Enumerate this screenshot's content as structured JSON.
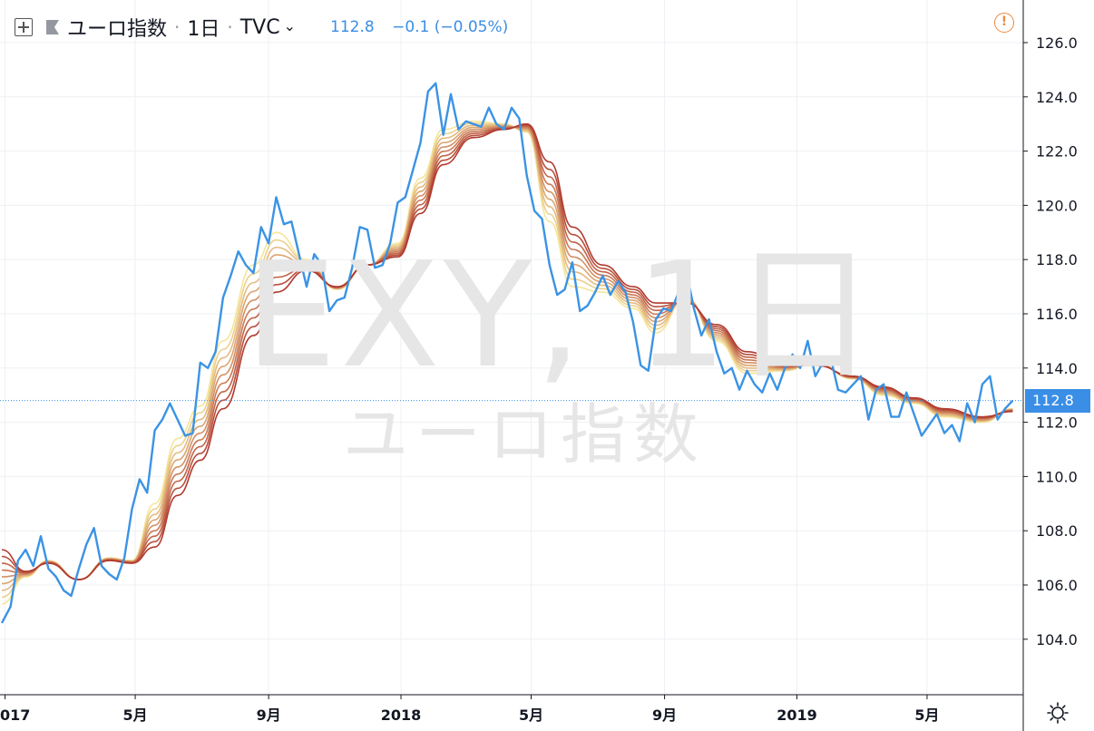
{
  "header": {
    "symbol_name": "ユーロ指数",
    "interval": "1日",
    "exchange": "TVC",
    "last_value": "112.8",
    "change": "−0.1 (−0.05%)"
  },
  "watermark": {
    "symbol": "EXY, 1日",
    "name": "ユーロ指数"
  },
  "price_tag": "112.8",
  "icons": {
    "add": "plus-square-icon",
    "flag": "flag-icon",
    "dropdown": "chevron-down-icon",
    "alert": "alert-icon",
    "settings": "gear-icon"
  },
  "colors": {
    "price_line": "#3b93e4",
    "ribbon_fast": "#f5e59a",
    "ribbon_slow": "#b03a2e",
    "accent": "#3a8ee6",
    "alert": "#f0883e"
  },
  "chart_data": {
    "type": "line",
    "title": "",
    "xlabel": "",
    "ylabel": "",
    "ylim": [
      102.5,
      127.0
    ],
    "y_ticks": [
      104.0,
      106.0,
      108.0,
      110.0,
      112.0,
      114.0,
      116.0,
      118.0,
      120.0,
      122.0,
      124.0,
      126.0
    ],
    "x_tick_labels": [
      {
        "label": "017",
        "date": "2017-01"
      },
      {
        "label": "5月",
        "date": "2017-05"
      },
      {
        "label": "9月",
        "date": "2017-09"
      },
      {
        "label": "2018",
        "date": "2018-01"
      },
      {
        "label": "5月",
        "date": "2018-05"
      },
      {
        "label": "9月",
        "date": "2018-09"
      },
      {
        "label": "2019",
        "date": "2019-01"
      },
      {
        "label": "5月",
        "date": "2019-05"
      }
    ],
    "x_range": [
      "2016-12-29",
      "2019-07-22"
    ],
    "grid": true,
    "last_value_line": 112.8,
    "series": [
      {
        "kind": "price",
        "points": [
          [
            "2016-12-29",
            104.6
          ],
          [
            "2017-01-06",
            105.2
          ],
          [
            "2017-01-13",
            106.9
          ],
          [
            "2017-01-20",
            107.3
          ],
          [
            "2017-01-27",
            106.7
          ],
          [
            "2017-02-03",
            107.8
          ],
          [
            "2017-02-10",
            106.6
          ],
          [
            "2017-02-17",
            106.3
          ],
          [
            "2017-02-24",
            105.8
          ],
          [
            "2017-03-03",
            105.6
          ],
          [
            "2017-03-10",
            106.6
          ],
          [
            "2017-03-17",
            107.5
          ],
          [
            "2017-03-24",
            108.1
          ],
          [
            "2017-03-31",
            106.7
          ],
          [
            "2017-04-07",
            106.4
          ],
          [
            "2017-04-14",
            106.2
          ],
          [
            "2017-04-21",
            107.0
          ],
          [
            "2017-04-28",
            108.8
          ],
          [
            "2017-05-05",
            109.9
          ],
          [
            "2017-05-12",
            109.4
          ],
          [
            "2017-05-19",
            111.7
          ],
          [
            "2017-05-26",
            112.1
          ],
          [
            "2017-06-02",
            112.7
          ],
          [
            "2017-06-09",
            112.1
          ],
          [
            "2017-06-16",
            111.5
          ],
          [
            "2017-06-23",
            111.6
          ],
          [
            "2017-06-30",
            114.2
          ],
          [
            "2017-07-07",
            114.0
          ],
          [
            "2017-07-14",
            114.6
          ],
          [
            "2017-07-21",
            116.6
          ],
          [
            "2017-07-28",
            117.4
          ],
          [
            "2017-08-04",
            118.3
          ],
          [
            "2017-08-11",
            117.8
          ],
          [
            "2017-08-18",
            117.5
          ],
          [
            "2017-08-25",
            119.2
          ],
          [
            "2017-09-01",
            118.6
          ],
          [
            "2017-09-08",
            120.3
          ],
          [
            "2017-09-15",
            119.3
          ],
          [
            "2017-09-22",
            119.4
          ],
          [
            "2017-09-29",
            118.2
          ],
          [
            "2017-10-06",
            117.0
          ],
          [
            "2017-10-13",
            118.2
          ],
          [
            "2017-10-20",
            117.8
          ],
          [
            "2017-10-27",
            116.1
          ],
          [
            "2017-11-03",
            116.5
          ],
          [
            "2017-11-10",
            116.6
          ],
          [
            "2017-11-17",
            117.7
          ],
          [
            "2017-11-24",
            119.2
          ],
          [
            "2017-12-01",
            119.1
          ],
          [
            "2017-12-08",
            117.7
          ],
          [
            "2017-12-15",
            117.8
          ],
          [
            "2017-12-22",
            118.6
          ],
          [
            "2017-12-29",
            120.1
          ],
          [
            "2018-01-05",
            120.3
          ],
          [
            "2018-01-12",
            121.3
          ],
          [
            "2018-01-19",
            122.3
          ],
          [
            "2018-01-26",
            124.2
          ],
          [
            "2018-02-02",
            124.5
          ],
          [
            "2018-02-09",
            122.6
          ],
          [
            "2018-02-16",
            124.1
          ],
          [
            "2018-02-23",
            122.8
          ],
          [
            "2018-03-02",
            123.1
          ],
          [
            "2018-03-09",
            123.0
          ],
          [
            "2018-03-16",
            122.9
          ],
          [
            "2018-03-23",
            123.6
          ],
          [
            "2018-03-30",
            123.0
          ],
          [
            "2018-04-06",
            122.8
          ],
          [
            "2018-04-13",
            123.6
          ],
          [
            "2018-04-20",
            123.2
          ],
          [
            "2018-04-27",
            121.1
          ],
          [
            "2018-05-04",
            119.8
          ],
          [
            "2018-05-11",
            119.5
          ],
          [
            "2018-05-18",
            117.8
          ],
          [
            "2018-05-25",
            116.7
          ],
          [
            "2018-06-01",
            116.9
          ],
          [
            "2018-06-08",
            117.9
          ],
          [
            "2018-06-15",
            116.1
          ],
          [
            "2018-06-22",
            116.3
          ],
          [
            "2018-06-29",
            116.8
          ],
          [
            "2018-07-06",
            117.4
          ],
          [
            "2018-07-13",
            116.7
          ],
          [
            "2018-07-20",
            117.2
          ],
          [
            "2018-07-27",
            116.8
          ],
          [
            "2018-08-03",
            115.7
          ],
          [
            "2018-08-10",
            114.1
          ],
          [
            "2018-08-17",
            113.9
          ],
          [
            "2018-08-24",
            115.8
          ],
          [
            "2018-08-31",
            116.2
          ],
          [
            "2018-09-07",
            116.1
          ],
          [
            "2018-09-14",
            116.8
          ],
          [
            "2018-09-21",
            117.6
          ],
          [
            "2018-09-28",
            116.2
          ],
          [
            "2018-10-05",
            115.2
          ],
          [
            "2018-10-12",
            115.8
          ],
          [
            "2018-10-19",
            114.6
          ],
          [
            "2018-10-26",
            113.8
          ],
          [
            "2018-11-02",
            114.0
          ],
          [
            "2018-11-09",
            113.2
          ],
          [
            "2018-11-16",
            113.9
          ],
          [
            "2018-11-23",
            113.4
          ],
          [
            "2018-11-30",
            113.1
          ],
          [
            "2018-12-07",
            113.8
          ],
          [
            "2018-12-14",
            113.2
          ],
          [
            "2018-12-21",
            114.0
          ],
          [
            "2018-12-28",
            114.5
          ],
          [
            "2019-01-04",
            114.0
          ],
          [
            "2019-01-11",
            115.0
          ],
          [
            "2019-01-18",
            113.7
          ],
          [
            "2019-01-25",
            114.2
          ],
          [
            "2019-02-01",
            114.4
          ],
          [
            "2019-02-08",
            113.2
          ],
          [
            "2019-02-15",
            113.1
          ],
          [
            "2019-02-22",
            113.4
          ],
          [
            "2019-03-01",
            113.7
          ],
          [
            "2019-03-08",
            112.1
          ],
          [
            "2019-03-15",
            113.2
          ],
          [
            "2019-03-22",
            113.4
          ],
          [
            "2019-03-29",
            112.2
          ],
          [
            "2019-04-05",
            112.2
          ],
          [
            "2019-04-12",
            113.1
          ],
          [
            "2019-04-19",
            112.3
          ],
          [
            "2019-04-26",
            111.5
          ],
          [
            "2019-05-03",
            111.9
          ],
          [
            "2019-05-10",
            112.3
          ],
          [
            "2019-05-17",
            111.6
          ],
          [
            "2019-05-24",
            111.9
          ],
          [
            "2019-05-31",
            111.3
          ],
          [
            "2019-06-07",
            112.7
          ],
          [
            "2019-06-14",
            112.0
          ],
          [
            "2019-06-21",
            113.4
          ],
          [
            "2019-06-28",
            113.7
          ],
          [
            "2019-07-05",
            112.1
          ],
          [
            "2019-07-12",
            112.5
          ],
          [
            "2019-07-19",
            112.8
          ]
        ]
      },
      {
        "kind": "ma_ribbon",
        "bands": 9,
        "note_periods": "fast to slow",
        "anchors_fast": [
          [
            "2016-12-29",
            105.3
          ],
          [
            "2017-01-20",
            106.3
          ],
          [
            "2017-02-10",
            106.9
          ],
          [
            "2017-03-10",
            106.2
          ],
          [
            "2017-04-07",
            107.0
          ],
          [
            "2017-04-28",
            106.9
          ],
          [
            "2017-05-19",
            109.0
          ],
          [
            "2017-06-09",
            111.4
          ],
          [
            "2017-06-30",
            112.6
          ],
          [
            "2017-07-21",
            115.0
          ],
          [
            "2017-08-18",
            117.8
          ],
          [
            "2017-09-08",
            119.0
          ],
          [
            "2017-10-06",
            118.0
          ],
          [
            "2017-11-03",
            116.9
          ],
          [
            "2017-12-01",
            117.8
          ],
          [
            "2017-12-29",
            118.6
          ],
          [
            "2018-01-19",
            121.0
          ],
          [
            "2018-02-09",
            122.8
          ],
          [
            "2018-03-09",
            123.1
          ],
          [
            "2018-04-06",
            123.0
          ],
          [
            "2018-04-27",
            122.7
          ],
          [
            "2018-05-18",
            119.4
          ],
          [
            "2018-06-08",
            117.0
          ],
          [
            "2018-07-06",
            116.8
          ],
          [
            "2018-08-03",
            116.2
          ],
          [
            "2018-08-24",
            115.3
          ],
          [
            "2018-09-21",
            116.6
          ],
          [
            "2018-10-19",
            115.0
          ],
          [
            "2018-11-16",
            113.8
          ],
          [
            "2018-12-21",
            113.9
          ],
          [
            "2019-01-18",
            114.2
          ],
          [
            "2019-02-22",
            113.6
          ],
          [
            "2019-03-22",
            113.0
          ],
          [
            "2019-04-19",
            112.7
          ],
          [
            "2019-05-17",
            112.2
          ],
          [
            "2019-06-21",
            112.0
          ],
          [
            "2019-07-19",
            112.5
          ]
        ],
        "anchors_slow": [
          [
            "2016-12-29",
            107.3
          ],
          [
            "2017-01-20",
            106.5
          ],
          [
            "2017-02-10",
            106.8
          ],
          [
            "2017-03-10",
            106.2
          ],
          [
            "2017-04-07",
            106.9
          ],
          [
            "2017-04-28",
            106.8
          ],
          [
            "2017-05-19",
            107.4
          ],
          [
            "2017-06-09",
            109.3
          ],
          [
            "2017-06-30",
            110.6
          ],
          [
            "2017-07-21",
            112.5
          ],
          [
            "2017-08-18",
            115.2
          ],
          [
            "2017-09-08",
            116.8
          ],
          [
            "2017-10-06",
            117.6
          ],
          [
            "2017-11-03",
            117.0
          ],
          [
            "2017-12-01",
            117.8
          ],
          [
            "2017-12-29",
            118.1
          ],
          [
            "2018-01-19",
            119.7
          ],
          [
            "2018-02-09",
            121.5
          ],
          [
            "2018-03-09",
            122.5
          ],
          [
            "2018-04-06",
            122.8
          ],
          [
            "2018-04-27",
            123.0
          ],
          [
            "2018-05-18",
            121.6
          ],
          [
            "2018-06-08",
            119.2
          ],
          [
            "2018-07-06",
            117.8
          ],
          [
            "2018-08-03",
            117.0
          ],
          [
            "2018-08-24",
            116.4
          ],
          [
            "2018-09-21",
            116.4
          ],
          [
            "2018-10-19",
            115.6
          ],
          [
            "2018-11-16",
            114.6
          ],
          [
            "2018-12-21",
            114.1
          ],
          [
            "2019-01-18",
            114.1
          ],
          [
            "2019-02-22",
            113.7
          ],
          [
            "2019-03-22",
            113.3
          ],
          [
            "2019-04-19",
            112.9
          ],
          [
            "2019-05-17",
            112.5
          ],
          [
            "2019-06-21",
            112.2
          ],
          [
            "2019-07-19",
            112.4
          ]
        ]
      }
    ]
  }
}
